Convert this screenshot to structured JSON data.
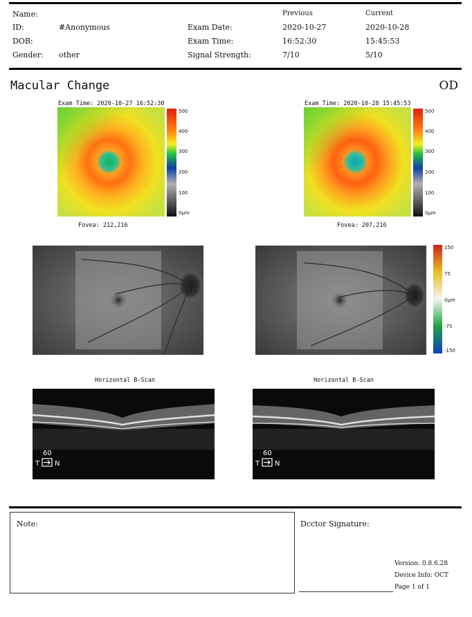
{
  "header": {
    "name_label": "Name:",
    "id_label": "ID:",
    "id_value": "#Anonymous",
    "dob_label": "DOB:",
    "gender_label": "Gender:",
    "gender_value": "other",
    "exam_date_label": "Exam Date:",
    "exam_time_label": "Exam Time:",
    "signal_label": "Signal Strength:",
    "previous_label": "Previous",
    "current_label": "Current",
    "previous": {
      "date": "2020-10-27",
      "time": "16:52:30",
      "signal": "7/10"
    },
    "current": {
      "date": "2020-10-28",
      "time": "15:45:53",
      "signal": "5/10"
    }
  },
  "section": {
    "title": "Macular Change",
    "eye": "OD"
  },
  "thickness_maps": [
    {
      "exam_time": "Exam Time: 2020-10-27 16:52:30",
      "fovea": "Fovea: 212,216"
    },
    {
      "exam_time": "Exam Time: 2020-10-28 15:45:53",
      "fovea": "Fovea: 207,216"
    }
  ],
  "thickness_scale": {
    "labels": [
      "500",
      "400",
      "300",
      "200",
      "100",
      "0μm"
    ]
  },
  "change_scale": {
    "labels": [
      "150",
      "75",
      "0μm",
      "-75",
      "-150"
    ]
  },
  "bscans": [
    {
      "title": "Horizontal B-Scan",
      "scale_value": "60",
      "left_dir": "T",
      "right_dir": "N"
    },
    {
      "title": "Horizontal B-Scan",
      "scale_value": "60",
      "left_dir": "T",
      "right_dir": "N"
    }
  ],
  "footer": {
    "note_label": "Note:",
    "signature_label": "Dcctor Signature:",
    "version": "Version: 0.8.6.28",
    "device": "Device Info: OCT",
    "page": "Page 1 of 1"
  },
  "colors": {
    "rule": "#000000",
    "scan_bg": "#0a0a0a"
  }
}
